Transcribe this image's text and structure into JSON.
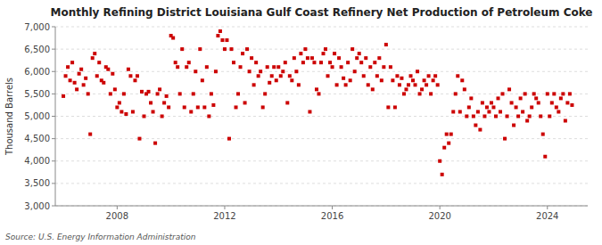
{
  "chart_data": {
    "type": "scatter",
    "title": "Monthly Refining District Louisiana Gulf Coast Refinery Net Production of Petroleum Coke",
    "ylabel": "Thousand Barrels",
    "source": "Source: U.S. Energy Information Administration",
    "color": "#cc0000",
    "marker": "square",
    "grid": true,
    "xlim": [
      2005.7,
      2025.5
    ],
    "xticks": [
      2008,
      2012,
      2016,
      2020,
      2024
    ],
    "ylim": [
      3000,
      7000
    ],
    "yticks": [
      {
        "value": 3000,
        "label": "3,000"
      },
      {
        "value": 3500,
        "label": "3,500"
      },
      {
        "value": 4000,
        "label": "4,000"
      },
      {
        "value": 4500,
        "label": "4,500"
      },
      {
        "value": 5000,
        "label": "5,000"
      },
      {
        "value": 5500,
        "label": "5,500"
      },
      {
        "value": 6000,
        "label": "6,000"
      },
      {
        "value": 6500,
        "label": "6,500"
      },
      {
        "value": 7000,
        "label": "7,000"
      }
    ],
    "x": [
      2006.0,
      2006.083,
      2006.167,
      2006.25,
      2006.333,
      2006.417,
      2006.5,
      2006.583,
      2006.667,
      2006.75,
      2006.833,
      2006.917,
      2007.0,
      2007.083,
      2007.167,
      2007.25,
      2007.333,
      2007.417,
      2007.5,
      2007.583,
      2007.667,
      2007.75,
      2007.833,
      2007.917,
      2008.0,
      2008.083,
      2008.167,
      2008.25,
      2008.333,
      2008.417,
      2008.5,
      2008.583,
      2008.667,
      2008.75,
      2008.833,
      2008.917,
      2009.0,
      2009.083,
      2009.167,
      2009.25,
      2009.333,
      2009.417,
      2009.5,
      2009.583,
      2009.667,
      2009.75,
      2009.833,
      2009.917,
      2010.0,
      2010.083,
      2010.167,
      2010.25,
      2010.333,
      2010.417,
      2010.5,
      2010.583,
      2010.667,
      2010.75,
      2010.833,
      2010.917,
      2011.0,
      2011.083,
      2011.167,
      2011.25,
      2011.333,
      2011.417,
      2011.5,
      2011.583,
      2011.667,
      2011.75,
      2011.833,
      2011.917,
      2012.0,
      2012.083,
      2012.167,
      2012.25,
      2012.333,
      2012.417,
      2012.5,
      2012.583,
      2012.667,
      2012.75,
      2012.833,
      2012.917,
      2013.0,
      2013.083,
      2013.167,
      2013.25,
      2013.333,
      2013.417,
      2013.5,
      2013.583,
      2013.667,
      2013.75,
      2013.833,
      2013.917,
      2014.0,
      2014.083,
      2014.167,
      2014.25,
      2014.333,
      2014.417,
      2014.5,
      2014.583,
      2014.667,
      2014.75,
      2014.833,
      2014.917,
      2015.0,
      2015.083,
      2015.167,
      2015.25,
      2015.333,
      2015.417,
      2015.5,
      2015.583,
      2015.667,
      2015.75,
      2015.833,
      2015.917,
      2016.0,
      2016.083,
      2016.167,
      2016.25,
      2016.333,
      2016.417,
      2016.5,
      2016.583,
      2016.667,
      2016.75,
      2016.833,
      2016.917,
      2017.0,
      2017.083,
      2017.167,
      2017.25,
      2017.333,
      2017.417,
      2017.5,
      2017.583,
      2017.667,
      2017.75,
      2017.833,
      2017.917,
      2018.0,
      2018.083,
      2018.167,
      2018.25,
      2018.333,
      2018.417,
      2018.5,
      2018.583,
      2018.667,
      2018.75,
      2018.833,
      2018.917,
      2019.0,
      2019.083,
      2019.167,
      2019.25,
      2019.333,
      2019.417,
      2019.5,
      2019.583,
      2019.667,
      2019.75,
      2019.833,
      2019.917,
      2020.0,
      2020.083,
      2020.167,
      2020.25,
      2020.333,
      2020.417,
      2020.5,
      2020.583,
      2020.667,
      2020.75,
      2020.833,
      2020.917,
      2021.0,
      2021.083,
      2021.167,
      2021.25,
      2021.333,
      2021.417,
      2021.5,
      2021.583,
      2021.667,
      2021.75,
      2021.833,
      2021.917,
      2022.0,
      2022.083,
      2022.167,
      2022.25,
      2022.333,
      2022.417,
      2022.5,
      2022.583,
      2022.667,
      2022.75,
      2022.833,
      2022.917,
      2023.0,
      2023.083,
      2023.167,
      2023.25,
      2023.333,
      2023.417,
      2023.5,
      2023.583,
      2023.667,
      2023.75,
      2023.833,
      2023.917,
      2024.0,
      2024.083,
      2024.167,
      2024.25,
      2024.333,
      2024.417,
      2024.5,
      2024.583,
      2024.667,
      2024.75,
      2024.833,
      2024.917
    ],
    "values": [
      5450,
      5900,
      6100,
      5800,
      6200,
      5750,
      5600,
      5950,
      6050,
      5700,
      5850,
      5500,
      4600,
      6300,
      6400,
      5900,
      6200,
      5800,
      5750,
      6100,
      6050,
      5500,
      5950,
      5600,
      5200,
      5300,
      5100,
      5500,
      5050,
      6050,
      5900,
      5100,
      5800,
      5900,
      4500,
      5550,
      5000,
      5500,
      5550,
      5300,
      5100,
      4400,
      5500,
      5600,
      5000,
      5300,
      5450,
      5200,
      6800,
      6750,
      6200,
      6100,
      5500,
      6500,
      5200,
      6100,
      6200,
      5100,
      5500,
      6000,
      5200,
      6500,
      5800,
      5200,
      6100,
      5000,
      5500,
      5250,
      6000,
      6800,
      6900,
      6700,
      6500,
      6700,
      4500,
      6500,
      6200,
      5200,
      5500,
      6100,
      6400,
      5300,
      6500,
      6000,
      6300,
      5700,
      6200,
      5900,
      6000,
      5200,
      5500,
      6100,
      5750,
      5900,
      6100,
      5800,
      6100,
      5900,
      6000,
      6200,
      5300,
      5900,
      5800,
      6300,
      6000,
      5700,
      6400,
      6200,
      6500,
      6300,
      5100,
      6300,
      6200,
      5600,
      5500,
      6200,
      6400,
      6500,
      5900,
      6200,
      6100,
      6400,
      5700,
      6300,
      6100,
      5850,
      5700,
      6200,
      5800,
      6500,
      6000,
      6300,
      6400,
      6200,
      5900,
      6300,
      5700,
      6100,
      5600,
      6200,
      5900,
      6300,
      5800,
      6100,
      6600,
      5200,
      6100,
      5800,
      5200,
      5900,
      5700,
      5850,
      5500,
      5600,
      5700,
      5900,
      5800,
      5700,
      6000,
      5500,
      5600,
      5800,
      5700,
      5900,
      5500,
      5800,
      5900,
      5700,
      4000,
      3700,
      4300,
      4600,
      4400,
      4600,
      5100,
      5500,
      5900,
      5100,
      5800,
      5600,
      5000,
      5200,
      5400,
      5000,
      4800,
      5100,
      4700,
      5300,
      5000,
      5200,
      5100,
      5300,
      5200,
      5000,
      5400,
      5100,
      5500,
      4500,
      5000,
      5600,
      5300,
      4800,
      5200,
      5000,
      5400,
      5100,
      5500,
      4900,
      5000,
      5200,
      5500,
      5400,
      5300,
      5000,
      4600,
      4100,
      5500,
      5000,
      5300,
      5500,
      5200,
      5100,
      5400,
      5500,
      4900,
      5300,
      5500,
      5250
    ]
  }
}
